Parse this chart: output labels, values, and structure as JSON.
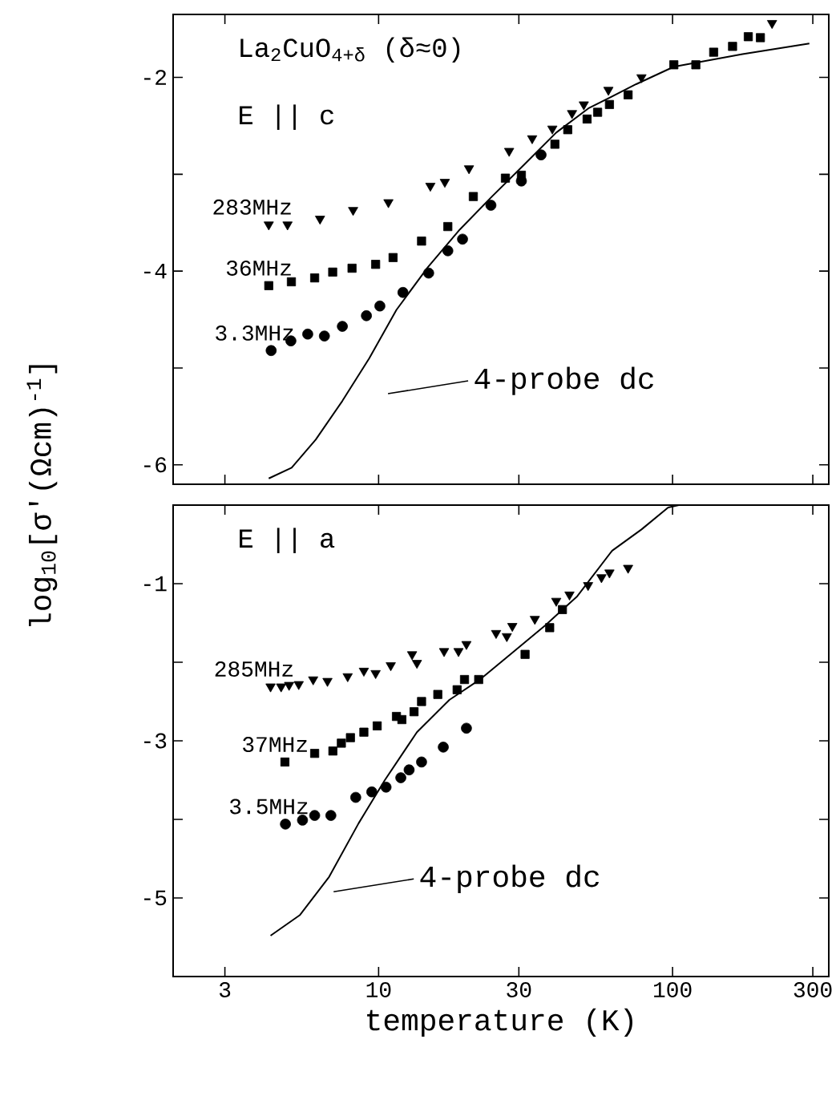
{
  "chart_data": [
    {
      "type": "scatter",
      "legend": "left",
      "ylabel": "log$_{10}$[σ'(Ωcm)$^{-1}$]",
      "log": "x",
      "tick_labels": "y",
      "xlim": [
        2,
        340
      ],
      "xticks": [
        3,
        10,
        30,
        100,
        300
      ],
      "ylim": [
        -6.2,
        -1.35
      ],
      "yticks": [
        -2,
        {
          "value": -3,
          "label": null
        },
        -4,
        {
          "value": -5,
          "label": null
        },
        -6
      ],
      "annotations": [
        "La$_{2}$CuO$_{4+δ}$ (δ≈0)",
        "E || c",
        "4-probe dc"
      ],
      "series": [
        {
          "name": "283MHz",
          "color": "#000000",
          "marker": "triangle",
          "x": [
            4.23,
            4.9,
            6.32,
            8.19,
            10.8,
            15.0,
            16.8,
            20.3,
            27.8,
            33.3,
            39.0,
            45.5,
            49.9,
            60.5,
            78.4,
            218
          ],
          "values": [
            -3.52,
            -3.52,
            -3.46,
            -3.37,
            -3.29,
            -3.12,
            -3.08,
            -2.94,
            -2.76,
            -2.63,
            -2.53,
            -2.37,
            -2.28,
            -2.13,
            -2.0,
            -1.44
          ]
        },
        {
          "name": "36MHz",
          "color": "#000000",
          "marker": "square",
          "x": [
            4.23,
            5.05,
            6.06,
            6.98,
            8.12,
            9.77,
            11.2,
            14.0,
            17.2,
            21.0,
            27.0,
            30.6,
            39.8,
            44.0,
            51.2,
            55.6,
            61.0,
            70.6,
            101,
            120,
            138,
            160,
            181,
            199
          ],
          "values": [
            -4.15,
            -4.11,
            -4.07,
            -4.01,
            -3.97,
            -3.93,
            -3.86,
            -3.69,
            -3.54,
            -3.23,
            -3.04,
            -3.01,
            -2.69,
            -2.54,
            -2.43,
            -2.36,
            -2.28,
            -2.18,
            -1.87,
            -1.87,
            -1.74,
            -1.68,
            -1.58,
            -1.59
          ]
        },
        {
          "name": "3.3MHz",
          "color": "#000000",
          "marker": "circle",
          "x": [
            4.31,
            5.03,
            5.74,
            6.54,
            7.53,
            9.09,
            10.1,
            12.1,
            14.8,
            17.2,
            19.3,
            24.1,
            30.6,
            35.7
          ],
          "values": [
            -4.82,
            -4.72,
            -4.65,
            -4.67,
            -4.57,
            -4.46,
            -4.36,
            -4.22,
            -4.02,
            -3.79,
            -3.67,
            -3.32,
            -3.07,
            -2.8
          ]
        },
        {
          "type": "line",
          "color": "#000000",
          "line_style": "solid",
          "x": [
            4.23,
            5.06,
            6.11,
            7.53,
            9.29,
            11.5,
            14.7,
            18.9,
            24.3,
            31.3,
            40.2,
            51.7,
            75.2,
            101,
            173,
            292
          ],
          "values": [
            -6.14,
            -6.03,
            -5.74,
            -5.34,
            -4.9,
            -4.4,
            -3.96,
            -3.57,
            -3.23,
            -2.9,
            -2.57,
            -2.32,
            -2.07,
            -1.89,
            -1.76,
            -1.65
          ]
        }
      ]
    },
    {
      "type": "scatter",
      "legend": "left",
      "xlabel": "temperature (K)",
      "log": "x",
      "xlim": [
        2,
        340
      ],
      "xticks": [
        3,
        10,
        30,
        100,
        300
      ],
      "ylim": [
        -6,
        0
      ],
      "yticks": [
        -1,
        {
          "value": -2,
          "label": null
        },
        -3,
        {
          "value": -4,
          "label": null
        },
        -5
      ],
      "annotations": [
        "E || a",
        "4-probe dc"
      ],
      "series": [
        {
          "name": "285MHz",
          "color": "#000000",
          "marker": "triangle",
          "x": [
            4.29,
            4.66,
            4.96,
            5.35,
            5.99,
            6.7,
            7.85,
            8.91,
            9.77,
            11.0,
            13.0,
            13.5,
            16.7,
            18.7,
            19.9,
            25.1,
            27.3,
            28.5,
            34.0,
            40.2,
            44.6,
            51.6,
            57.3,
            61.0,
            70.6
          ],
          "values": [
            -2.31,
            -2.31,
            -2.29,
            -2.28,
            -2.22,
            -2.24,
            -2.18,
            -2.11,
            -2.14,
            -2.04,
            -1.9,
            -2.01,
            -1.86,
            -1.86,
            -1.77,
            -1.63,
            -1.67,
            -1.54,
            -1.45,
            -1.22,
            -1.14,
            -1.02,
            -0.92,
            -0.86,
            -0.8
          ]
        },
        {
          "name": "37MHz",
          "color": "#000000",
          "marker": "square",
          "x": [
            4.8,
            6.06,
            6.99,
            7.47,
            8.02,
            8.91,
            9.89,
            11.5,
            12.0,
            13.2,
            14.0,
            15.9,
            18.5,
            19.6,
            21.9,
            31.5,
            38.2,
            42.2
          ],
          "values": [
            -3.27,
            -3.16,
            -3.13,
            -3.03,
            -2.96,
            -2.89,
            -2.81,
            -2.69,
            -2.73,
            -2.63,
            -2.5,
            -2.41,
            -2.35,
            -2.22,
            -2.22,
            -1.9,
            -1.56,
            -1.33
          ]
        },
        {
          "name": "3.5MHz",
          "color": "#000000",
          "marker": "circle",
          "x": [
            4.82,
            5.51,
            6.06,
            6.88,
            8.36,
            9.48,
            10.6,
            11.9,
            12.7,
            14.0,
            16.6,
            19.9
          ],
          "values": [
            -4.06,
            -4.01,
            -3.95,
            -3.95,
            -3.72,
            -3.65,
            -3.59,
            -3.47,
            -3.37,
            -3.27,
            -3.08,
            -2.84
          ]
        },
        {
          "type": "line",
          "color": "#000000",
          "line_style": "solid",
          "x": [
            4.29,
            5.39,
            6.79,
            8.55,
            10.5,
            13.5,
            17.4,
            22.3,
            28.7,
            36.9,
            47.4,
            62.3,
            78.4,
            96.6,
            105
          ],
          "values": [
            -5.48,
            -5.22,
            -4.73,
            -4.05,
            -3.5,
            -2.89,
            -2.48,
            -2.21,
            -1.87,
            -1.53,
            -1.16,
            -0.58,
            -0.31,
            -0.03,
            0
          ]
        }
      ]
    }
  ]
}
